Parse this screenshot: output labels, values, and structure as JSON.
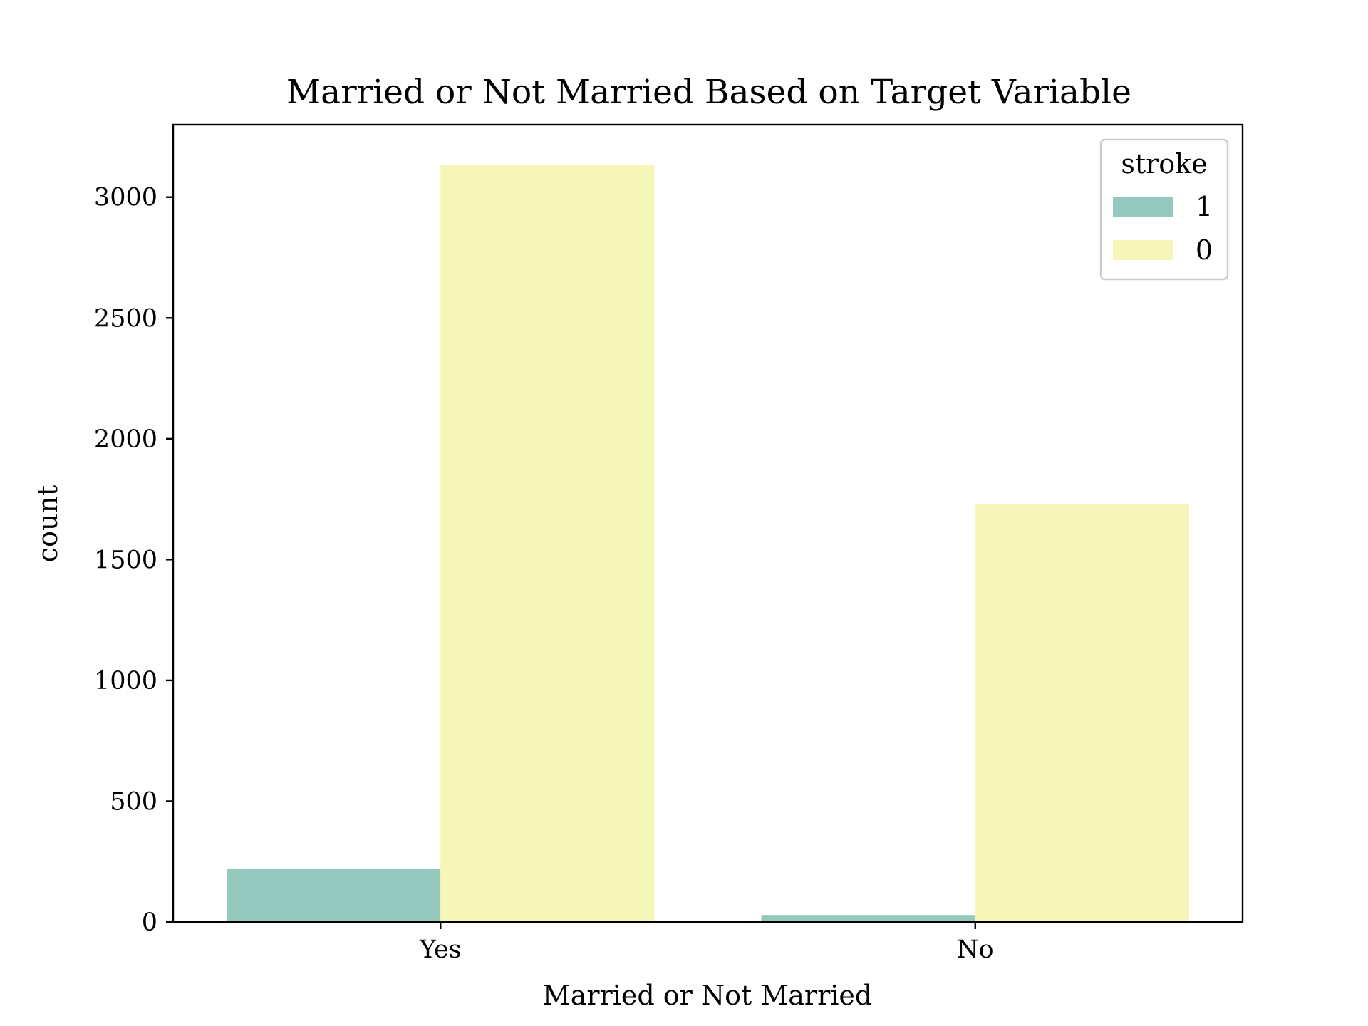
{
  "chart_data": {
    "type": "bar",
    "title": "Married or Not Married Based on Target Variable",
    "xlabel": "Married or Not Married",
    "ylabel": "count",
    "categories": [
      "Yes",
      "No"
    ],
    "series": [
      {
        "name": "1",
        "values": [
          220,
          29
        ],
        "color": "#96c9be"
      },
      {
        "name": "0",
        "values": [
          3133,
          1728
        ],
        "color": "#f6f6b9"
      }
    ],
    "ylim": [
      0,
      3300
    ],
    "yticks": [
      0,
      500,
      1000,
      1500,
      2000,
      2500,
      3000
    ],
    "legend": {
      "title": "stroke",
      "placement": "top-right"
    },
    "grid": false
  }
}
